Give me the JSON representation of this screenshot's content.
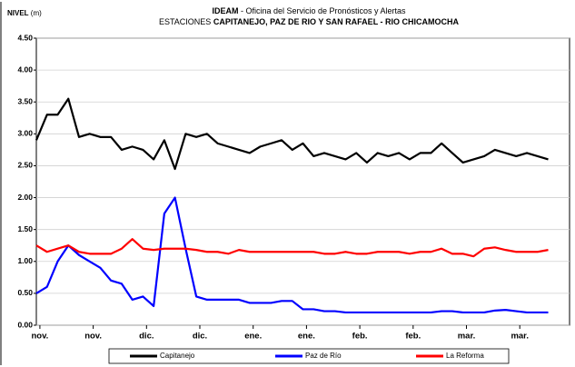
{
  "chart_data": {
    "type": "line",
    "title": [
      "IDEAM",
      " - Oficina del Servicio de Pronósticos y Alertas"
    ],
    "subtitle": [
      "ESTACIONES ",
      "CAPITANEJO, PAZ DE RIO Y SAN RAFAEL -  RIO CHICAMOCHA"
    ],
    "ylabel": [
      "NIVEL",
      " (m)"
    ],
    "x": [
      0,
      3,
      6,
      9,
      12,
      15,
      18,
      21,
      24,
      27,
      30,
      33,
      36,
      39,
      42,
      45,
      48,
      51,
      54,
      57,
      60,
      63,
      66,
      69,
      72,
      75,
      78,
      81,
      84,
      87,
      90,
      93,
      96,
      99,
      102,
      105,
      108,
      111,
      114,
      117,
      120,
      123,
      126,
      129,
      132,
      135,
      138,
      141,
      144
    ],
    "xlim": [
      0,
      150
    ],
    "xticks": [
      {
        "value": 1,
        "label": "nov."
      },
      {
        "value": 16,
        "label": "nov."
      },
      {
        "value": 31,
        "label": "dic."
      },
      {
        "value": 46,
        "label": "dic."
      },
      {
        "value": 61,
        "label": "ene."
      },
      {
        "value": 76,
        "label": "ene."
      },
      {
        "value": 91,
        "label": "feb."
      },
      {
        "value": 106,
        "label": "feb."
      },
      {
        "value": 121,
        "label": "mar."
      },
      {
        "value": 136,
        "label": "mar."
      }
    ],
    "ylim": [
      0,
      4.5
    ],
    "yticks": [
      {
        "value": 0,
        "label": "0.00"
      },
      {
        "value": 0.5,
        "label": "0.50"
      },
      {
        "value": 1,
        "label": "1.00"
      },
      {
        "value": 1.5,
        "label": "1.50"
      },
      {
        "value": 2,
        "label": "2.00"
      },
      {
        "value": 2.5,
        "label": "2.50"
      },
      {
        "value": 3,
        "label": "3.00"
      },
      {
        "value": 3.5,
        "label": "3.50"
      },
      {
        "value": 4,
        "label": "4.00"
      },
      {
        "value": 4.5,
        "label": "4.50"
      }
    ],
    "grid": true,
    "legend": "bottom",
    "series": [
      {
        "name": "Capitanejo",
        "color": "#000000",
        "values": [
          2.9,
          3.3,
          3.3,
          3.55,
          2.95,
          3.0,
          2.95,
          2.95,
          2.75,
          2.8,
          2.75,
          2.6,
          2.9,
          2.45,
          3.0,
          2.95,
          3.0,
          2.85,
          2.8,
          2.75,
          2.7,
          2.8,
          2.85,
          2.9,
          2.75,
          2.85,
          2.65,
          2.7,
          2.65,
          2.6,
          2.7,
          2.55,
          2.7,
          2.65,
          2.7,
          2.6,
          2.7,
          2.7,
          2.85,
          2.7,
          2.55,
          2.6,
          2.65,
          2.75,
          2.7,
          2.65,
          2.7,
          2.65,
          2.6
        ]
      },
      {
        "name": "Paz de Río",
        "color": "#0000ff",
        "values": [
          0.5,
          0.6,
          1.0,
          1.25,
          1.1,
          1.0,
          0.9,
          0.7,
          0.65,
          0.4,
          0.45,
          0.3,
          1.75,
          2.0,
          1.2,
          0.45,
          0.4,
          0.4,
          0.4,
          0.4,
          0.35,
          0.35,
          0.35,
          0.38,
          0.38,
          0.25,
          0.25,
          0.22,
          0.22,
          0.2,
          0.2,
          0.2,
          0.2,
          0.2,
          0.2,
          0.2,
          0.2,
          0.2,
          0.22,
          0.22,
          0.2,
          0.2,
          0.2,
          0.23,
          0.24,
          0.22,
          0.2,
          0.2,
          0.2
        ]
      },
      {
        "name": "La Reforma",
        "color": "#ff0000",
        "values": [
          1.25,
          1.15,
          1.2,
          1.25,
          1.15,
          1.12,
          1.12,
          1.12,
          1.2,
          1.35,
          1.2,
          1.18,
          1.2,
          1.2,
          1.2,
          1.18,
          1.15,
          1.15,
          1.12,
          1.18,
          1.15,
          1.15,
          1.15,
          1.15,
          1.15,
          1.15,
          1.15,
          1.12,
          1.12,
          1.15,
          1.12,
          1.12,
          1.15,
          1.15,
          1.15,
          1.12,
          1.15,
          1.15,
          1.2,
          1.12,
          1.12,
          1.08,
          1.2,
          1.22,
          1.18,
          1.15,
          1.15,
          1.15,
          1.18
        ]
      }
    ]
  }
}
